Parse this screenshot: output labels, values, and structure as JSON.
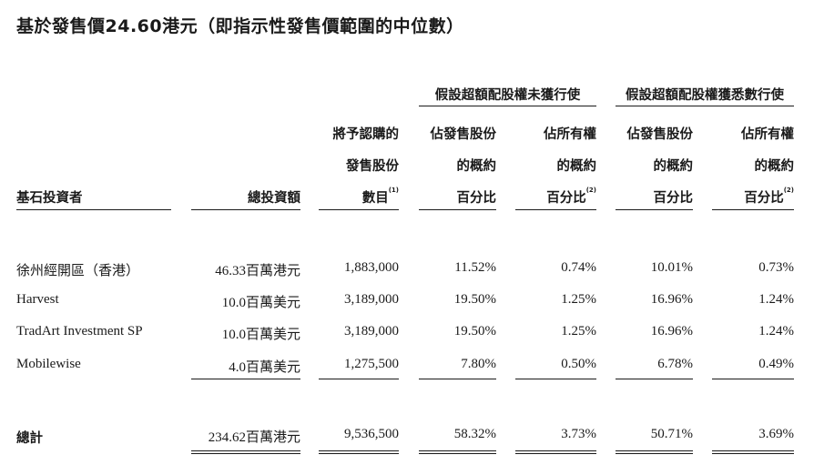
{
  "title": "基於發售價24.60港元（即指示性發售價範圍的中位數）",
  "group_headers": {
    "not_exercised": "假設超額配股權未獲行使",
    "fully_exercised": "假設超額配股權獲悉數行使"
  },
  "columns": {
    "investor": "基石投資者",
    "investment": "總投資額",
    "shares_l1": "將予認購的",
    "shares_l2": "發售股份",
    "shares_l3": "數目",
    "shares_note": "(1)",
    "pct_offer_l1": "佔發售股份",
    "pct_offer_l2": "的概約",
    "pct_offer_l3": "百分比",
    "pct_issued_l1": "佔所有權",
    "pct_issued_l2": "的概約",
    "pct_issued_l3": "百分比",
    "pct_issued_note": "(2)"
  },
  "rows": [
    {
      "investor": "徐州經開區（香港）",
      "investment": "46.33百萬港元",
      "shares": "1,883,000",
      "a1": "11.52%",
      "a2": "0.74%",
      "b1": "10.01%",
      "b2": "0.73%"
    },
    {
      "investor": "Harvest",
      "investment": "10.0百萬美元",
      "shares": "3,189,000",
      "a1": "19.50%",
      "a2": "1.25%",
      "b1": "16.96%",
      "b2": "1.24%"
    },
    {
      "investor": "TradArt Investment SP",
      "investment": "10.0百萬美元",
      "shares": "3,189,000",
      "a1": "19.50%",
      "a2": "1.25%",
      "b1": "16.96%",
      "b2": "1.24%"
    },
    {
      "investor": "Mobilewise",
      "investment": "4.0百萬美元",
      "shares": "1,275,500",
      "a1": "7.80%",
      "a2": "0.50%",
      "b1": "6.78%",
      "b2": "0.49%"
    }
  ],
  "total": {
    "label": "總計",
    "investment": "234.62百萬港元",
    "shares": "9,536,500",
    "a1": "58.32%",
    "a2": "3.73%",
    "b1": "50.71%",
    "b2": "3.69%"
  }
}
